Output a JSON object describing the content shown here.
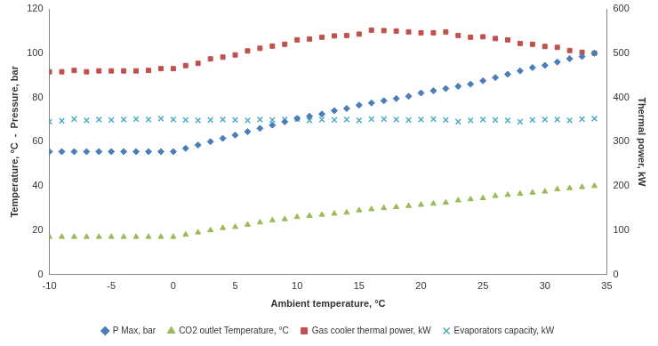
{
  "chart_data": {
    "type": "scatter",
    "x_label": "Ambient temperature, °C",
    "y_label": "Temperature, °C  -  Pressure, bar",
    "y2_label": "Thermal power, kW",
    "x": [
      -10,
      -9,
      -8,
      -7,
      -6,
      -5,
      -4,
      -3,
      -2,
      -1,
      0,
      1,
      2,
      3,
      4,
      5,
      6,
      7,
      8,
      9,
      10,
      11,
      12,
      13,
      14,
      15,
      16,
      17,
      18,
      19,
      20,
      21,
      22,
      23,
      24,
      25,
      26,
      27,
      28,
      29,
      30,
      31,
      32,
      33,
      34
    ],
    "xlim": [
      -10,
      35
    ],
    "xticks": [
      -10,
      -5,
      0,
      5,
      10,
      15,
      20,
      25,
      30,
      35
    ],
    "ylim": [
      0,
      120
    ],
    "yticks": [
      0,
      20,
      40,
      60,
      80,
      100,
      120
    ],
    "y2lim": [
      0,
      600
    ],
    "y2ticks": [
      0,
      100,
      200,
      300,
      400,
      500,
      600
    ],
    "grid": false,
    "legend": "bottom",
    "series": [
      {
        "name": "P Max, bar",
        "color": "#4a7ebb",
        "marker": "diamond",
        "values": [
          55.5,
          55.5,
          55.5,
          55.5,
          55.5,
          55.5,
          55.5,
          55.5,
          55.5,
          55.5,
          55.5,
          57,
          58.5,
          60,
          61.5,
          63,
          64.5,
          66,
          67.5,
          69,
          70.5,
          71.5,
          72.5,
          74,
          75,
          76.5,
          77.5,
          78.5,
          79.5,
          80.5,
          82,
          83,
          84,
          85,
          86,
          87.5,
          89,
          90.5,
          92,
          93.5,
          94.5,
          96,
          97.5,
          98.5,
          100
        ]
      },
      {
        "name": "CO2 outlet Temperature, °C",
        "color": "#9bbb59",
        "marker": "triangle",
        "values": [
          17,
          17,
          17,
          17,
          17,
          17,
          17,
          17,
          17,
          17,
          17,
          18,
          19,
          20,
          21,
          21.5,
          22.5,
          23.5,
          24.5,
          25,
          26,
          26.5,
          27,
          27.5,
          28,
          29,
          29.5,
          30,
          30.5,
          31,
          31.5,
          32,
          32.5,
          33.5,
          34,
          34.5,
          35.5,
          36,
          36.5,
          37,
          37.5,
          38.5,
          39,
          39.5,
          40
        ]
      },
      {
        "name": "Gas cooler thermal power, kW",
        "color": "#c0504d",
        "marker": "square",
        "axis": "y2",
        "values": [
          458,
          458,
          461,
          458,
          460,
          460,
          460,
          460,
          461,
          465,
          465,
          472,
          477,
          487,
          491,
          496,
          505,
          511,
          516,
          520,
          530,
          532,
          536,
          539,
          540,
          543,
          552,
          551,
          550,
          548,
          546,
          546,
          548,
          540,
          536,
          537,
          533,
          530,
          522,
          520,
          515,
          513,
          506,
          502,
          500
        ]
      },
      {
        "name": "Evaporators capacity, kW",
        "color": "#4bacc6",
        "marker": "x",
        "axis": "y2",
        "values": [
          345,
          347,
          351,
          348,
          350,
          349,
          350,
          351,
          350,
          352,
          350,
          349,
          348,
          349,
          350,
          349,
          348,
          350,
          349,
          350,
          351,
          348,
          350,
          349,
          350,
          348,
          351,
          351,
          350,
          349,
          350,
          351,
          349,
          345,
          348,
          350,
          349,
          348,
          345,
          349,
          350,
          350,
          348,
          351,
          352
        ]
      }
    ]
  }
}
